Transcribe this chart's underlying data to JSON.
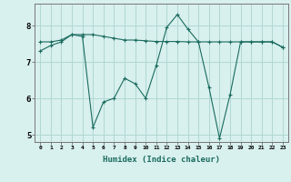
{
  "line1_x": [
    0,
    1,
    2,
    3,
    4,
    5,
    6,
    7,
    8,
    9,
    10,
    11,
    12,
    13,
    14,
    15,
    16,
    17,
    18,
    19,
    20,
    21,
    22,
    23
  ],
  "line1_y": [
    7.3,
    7.45,
    7.55,
    7.75,
    7.7,
    5.2,
    5.9,
    6.0,
    6.55,
    6.4,
    6.0,
    6.9,
    7.95,
    8.3,
    7.9,
    7.55,
    6.3,
    4.9,
    6.1,
    7.55,
    7.55,
    7.55,
    7.55,
    7.4
  ],
  "line2_x": [
    0,
    1,
    2,
    3,
    4,
    5,
    6,
    7,
    8,
    9,
    10,
    11,
    12,
    13,
    14,
    15,
    16,
    17,
    18,
    19,
    20,
    21,
    22,
    23
  ],
  "line2_y": [
    7.55,
    7.55,
    7.6,
    7.75,
    7.75,
    7.75,
    7.7,
    7.65,
    7.6,
    7.6,
    7.58,
    7.56,
    7.56,
    7.56,
    7.55,
    7.55,
    7.55,
    7.55,
    7.55,
    7.55,
    7.55,
    7.55,
    7.55,
    7.4
  ],
  "line_color": "#1a6b5e",
  "bg_color": "#d8f0ee",
  "grid_color": "#b0d8d4",
  "xlabel": "Humidex (Indice chaleur)",
  "ylim": [
    4.8,
    8.6
  ],
  "xlim": [
    -0.5,
    23.5
  ],
  "yticks": [
    5,
    6,
    7,
    8
  ],
  "xticks": [
    0,
    1,
    2,
    3,
    4,
    5,
    6,
    7,
    8,
    9,
    10,
    11,
    12,
    13,
    14,
    15,
    16,
    17,
    18,
    19,
    20,
    21,
    22,
    23
  ]
}
